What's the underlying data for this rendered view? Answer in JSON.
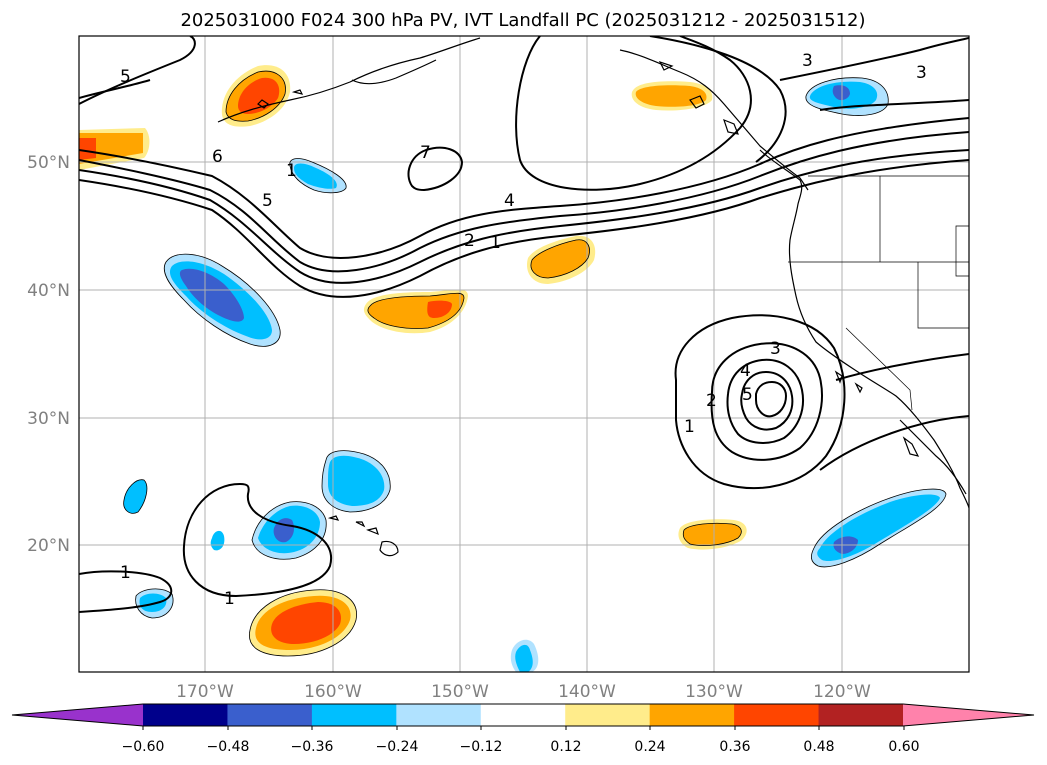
{
  "title": "2025031000 F024 300 hPa PV, IVT Landfall PC (2025031212 - 2025031512)",
  "lat_labels": [
    "50°N",
    "40°N",
    "30°N",
    "20°N"
  ],
  "lon_labels": [
    "170°W",
    "160°W",
    "150°W",
    "140°W",
    "130°W",
    "120°W"
  ],
  "colorbar": {
    "ticks": [
      "−0.60",
      "−0.48",
      "−0.36",
      "−0.24",
      "−0.12",
      "0.12",
      "0.24",
      "0.36",
      "0.48",
      "0.60"
    ],
    "colors": [
      "#9932cc",
      "#00008b",
      "#3a5fcd",
      "#00bfff",
      "#b0e2ff",
      "#ffffff",
      "#ffec8b",
      "#ffa500",
      "#ff4500",
      "#b22222",
      "#ff82ab"
    ]
  },
  "contour_labels": [
    "5",
    "6",
    "5",
    "7",
    "4",
    "2",
    "1",
    "3",
    "3",
    "1",
    "2",
    "4",
    "5",
    "3",
    "1",
    "1",
    "1"
  ]
}
